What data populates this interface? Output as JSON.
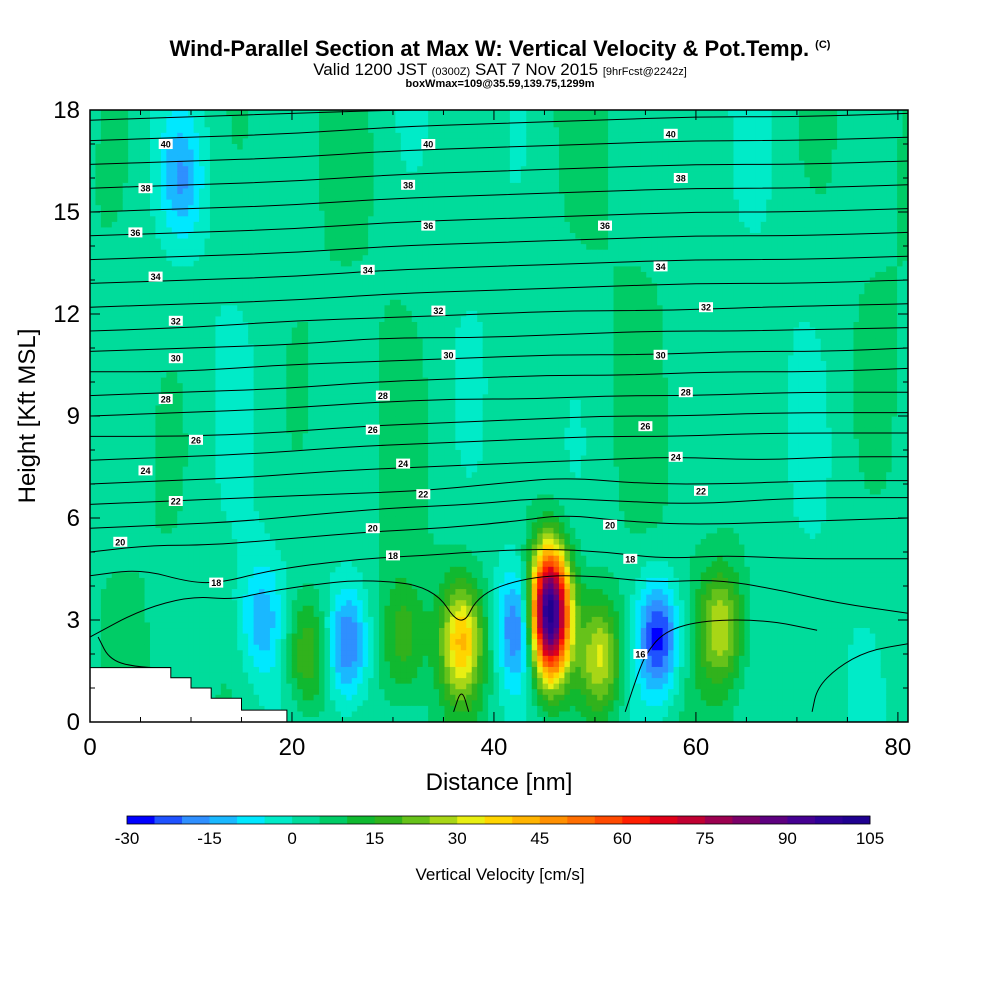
{
  "chart_data": {
    "type": "heatmap",
    "title": "Wind-Parallel Section at Max W: Vertical Velocity & Pot.Temp.",
    "title_mark": "(C)",
    "subtitle_parts": [
      "Valid 1200 JST",
      "(0300Z)",
      "SAT 7 Nov 2015",
      "[9hrFcst@2242z]"
    ],
    "subtitle2": "boxWmax=109@35.59,139.75,1299m",
    "xlabel": "Distance [nm]",
    "ylabel": "Height [Kft MSL]",
    "xlim": [
      0,
      81
    ],
    "ylim": [
      0,
      18
    ],
    "x_ticks": [
      "0",
      "20",
      "40",
      "60",
      "80"
    ],
    "y_ticks": [
      "0",
      "3",
      "6",
      "9",
      "12",
      "15",
      "18"
    ],
    "colorbar": {
      "label": "Vertical Velocity [cm/s]",
      "min": -30,
      "max": 105,
      "step": 5,
      "tick_labels": [
        "-30",
        "-15",
        "0",
        "15",
        "30",
        "45",
        "60",
        "75",
        "90",
        "105"
      ],
      "colors": [
        "#0000ff",
        "#1f52ff",
        "#2f8fff",
        "#1ab8ff",
        "#00e8ff",
        "#00ebc8",
        "#00dc9b",
        "#00cc66",
        "#10b930",
        "#31b21c",
        "#66c21a",
        "#a8d616",
        "#e8ef12",
        "#ffd500",
        "#ffb400",
        "#ff9000",
        "#ff6e00",
        "#ff4a00",
        "#ff1f00",
        "#e00018",
        "#c00032",
        "#9c0050",
        "#7b0068",
        "#5e0080",
        "#450092",
        "#2e0096",
        "#1f0090"
      ]
    },
    "terrain_steps": [
      [
        0,
        1.6
      ],
      [
        8,
        1.6
      ],
      [
        8,
        1.3
      ],
      [
        10,
        1.3
      ],
      [
        10,
        1.0
      ],
      [
        12,
        1.0
      ],
      [
        12,
        0.7
      ],
      [
        15,
        0.7
      ],
      [
        15,
        0.35
      ],
      [
        19.5,
        0.35
      ],
      [
        19.5,
        0
      ]
    ],
    "updraft_columns": [
      {
        "x": 45.5,
        "y": 3.2,
        "w_max": 105
      },
      {
        "x": 36.8,
        "y": 2.4,
        "w_max": 35
      },
      {
        "x": 50.5,
        "y": 1.9,
        "w_max": 28
      },
      {
        "x": 62.5,
        "y": 2.8,
        "w_max": 25
      },
      {
        "x": 21.5,
        "y": 2.0,
        "w_max": 20
      },
      {
        "x": 31.0,
        "y": 2.5,
        "w_max": 15
      }
    ],
    "downdraft_columns": [
      {
        "x": 56.3,
        "y": 2.5,
        "w_min": -30
      },
      {
        "x": 42.5,
        "y": 2.8,
        "w_min": -25
      },
      {
        "x": 25.5,
        "y": 2.3,
        "w_min": -25
      },
      {
        "x": 17.0,
        "y": 3.0,
        "w_min": -15
      },
      {
        "x": 9.0,
        "y": 16.0,
        "w_min": -15
      }
    ],
    "theta_labels": [
      {
        "x": 7.5,
        "y": 17.0,
        "text": "40"
      },
      {
        "x": 33.5,
        "y": 17.0,
        "text": "40"
      },
      {
        "x": 57.5,
        "y": 17.3,
        "text": "40"
      },
      {
        "x": 5.5,
        "y": 15.7,
        "text": "38"
      },
      {
        "x": 31.5,
        "y": 15.8,
        "text": "38"
      },
      {
        "x": 58.5,
        "y": 16.0,
        "text": "38"
      },
      {
        "x": 4.5,
        "y": 14.4,
        "text": "36"
      },
      {
        "x": 33.5,
        "y": 14.6,
        "text": "36"
      },
      {
        "x": 51.0,
        "y": 14.6,
        "text": "36"
      },
      {
        "x": 6.5,
        "y": 13.1,
        "text": "34"
      },
      {
        "x": 27.5,
        "y": 13.3,
        "text": "34"
      },
      {
        "x": 56.5,
        "y": 13.4,
        "text": "34"
      },
      {
        "x": 8.5,
        "y": 11.8,
        "text": "32"
      },
      {
        "x": 34.5,
        "y": 12.1,
        "text": "32"
      },
      {
        "x": 61.0,
        "y": 12.2,
        "text": "32"
      },
      {
        "x": 8.5,
        "y": 10.7,
        "text": "30"
      },
      {
        "x": 35.5,
        "y": 10.8,
        "text": "30"
      },
      {
        "x": 56.5,
        "y": 10.8,
        "text": "30"
      },
      {
        "x": 7.5,
        "y": 9.5,
        "text": "28"
      },
      {
        "x": 29.0,
        "y": 9.6,
        "text": "28"
      },
      {
        "x": 59.0,
        "y": 9.7,
        "text": "28"
      },
      {
        "x": 10.5,
        "y": 8.3,
        "text": "26"
      },
      {
        "x": 28.0,
        "y": 8.6,
        "text": "26"
      },
      {
        "x": 55.0,
        "y": 8.7,
        "text": "26"
      },
      {
        "x": 5.5,
        "y": 7.4,
        "text": "24"
      },
      {
        "x": 31.0,
        "y": 7.6,
        "text": "24"
      },
      {
        "x": 58.0,
        "y": 7.8,
        "text": "24"
      },
      {
        "x": 8.5,
        "y": 6.5,
        "text": "22"
      },
      {
        "x": 33.0,
        "y": 6.7,
        "text": "22"
      },
      {
        "x": 60.5,
        "y": 6.8,
        "text": "22"
      },
      {
        "x": 3.0,
        "y": 5.3,
        "text": "20"
      },
      {
        "x": 28.0,
        "y": 5.7,
        "text": "20"
      },
      {
        "x": 51.5,
        "y": 5.8,
        "text": "20"
      },
      {
        "x": 12.5,
        "y": 4.1,
        "text": "18"
      },
      {
        "x": 30.0,
        "y": 4.9,
        "text": "18"
      },
      {
        "x": 53.5,
        "y": 4.8,
        "text": "18"
      },
      {
        "x": 54.5,
        "y": 2.0,
        "text": "16"
      }
    ],
    "theta_isolines": [
      [
        [
          0,
          2.5
        ],
        [
          5,
          3.3
        ],
        [
          10,
          3.7
        ],
        [
          14,
          3.6
        ],
        [
          17,
          3.8
        ],
        [
          21,
          4.0
        ],
        [
          27,
          4.2
        ],
        [
          34,
          4.0
        ],
        [
          36.8,
          2.7
        ],
        [
          38.5,
          3.8
        ],
        [
          44,
          4.3
        ],
        [
          50,
          4.3
        ],
        [
          56,
          4.1
        ],
        [
          62,
          4.2
        ],
        [
          68,
          3.9
        ],
        [
          74,
          3.5
        ],
        [
          81,
          3.2
        ]
      ],
      [
        [
          0,
          4.3
        ],
        [
          5,
          4.5
        ],
        [
          10,
          4.1
        ],
        [
          13,
          4.1
        ],
        [
          17,
          4.4
        ],
        [
          21,
          4.6
        ],
        [
          27,
          4.8
        ],
        [
          33,
          4.9
        ],
        [
          38,
          5.0
        ],
        [
          45,
          5.1
        ],
        [
          51,
          5.0
        ],
        [
          57,
          4.8
        ],
        [
          63,
          4.9
        ],
        [
          70,
          4.8
        ],
        [
          81,
          4.8
        ]
      ],
      [
        [
          0,
          5.0
        ],
        [
          6,
          5.2
        ],
        [
          12,
          5.2
        ],
        [
          20,
          5.4
        ],
        [
          28,
          5.6
        ],
        [
          35,
          5.7
        ],
        [
          42,
          5.9
        ],
        [
          47,
          6.1
        ],
        [
          53,
          5.9
        ],
        [
          60,
          5.8
        ],
        [
          70,
          5.9
        ],
        [
          81,
          6.0
        ]
      ],
      [
        [
          0,
          5.7
        ],
        [
          8,
          5.8
        ],
        [
          15,
          5.9
        ],
        [
          22,
          6.1
        ],
        [
          30,
          6.3
        ],
        [
          38,
          6.4
        ],
        [
          45,
          6.6
        ],
        [
          52,
          6.5
        ],
        [
          60,
          6.4
        ],
        [
          70,
          6.6
        ],
        [
          81,
          6.6
        ]
      ],
      [
        [
          0,
          6.4
        ],
        [
          8,
          6.5
        ],
        [
          16,
          6.6
        ],
        [
          24,
          6.7
        ],
        [
          33,
          6.8
        ],
        [
          40,
          7.0
        ],
        [
          47,
          7.2
        ],
        [
          55,
          7.0
        ],
        [
          63,
          7.0
        ],
        [
          72,
          7.1
        ],
        [
          81,
          7.1
        ]
      ],
      [
        [
          0,
          7.0
        ],
        [
          8,
          7.1
        ],
        [
          16,
          7.2
        ],
        [
          25,
          7.4
        ],
        [
          33,
          7.5
        ],
        [
          41,
          7.6
        ],
        [
          49,
          7.7
        ],
        [
          58,
          7.8
        ],
        [
          66,
          7.7
        ],
        [
          74,
          7.8
        ],
        [
          81,
          7.8
        ]
      ],
      [
        [
          0,
          7.7
        ],
        [
          9,
          7.8
        ],
        [
          17,
          7.9
        ],
        [
          26,
          8.1
        ],
        [
          34,
          8.2
        ],
        [
          42,
          8.3
        ],
        [
          50,
          8.4
        ],
        [
          58,
          8.4
        ],
        [
          67,
          8.5
        ],
        [
          81,
          8.5
        ]
      ],
      [
        [
          0,
          8.4
        ],
        [
          9,
          8.4
        ],
        [
          18,
          8.5
        ],
        [
          27,
          8.7
        ],
        [
          35,
          8.8
        ],
        [
          43,
          8.9
        ],
        [
          51,
          9.0
        ],
        [
          59,
          9.0
        ],
        [
          68,
          9.1
        ],
        [
          81,
          9.1
        ]
      ],
      [
        [
          0,
          9.0
        ],
        [
          9,
          9.1
        ],
        [
          18,
          9.2
        ],
        [
          28,
          9.4
        ],
        [
          36,
          9.5
        ],
        [
          44,
          9.5
        ],
        [
          52,
          9.6
        ],
        [
          60,
          9.6
        ],
        [
          70,
          9.7
        ],
        [
          81,
          9.7
        ]
      ],
      [
        [
          0,
          9.6
        ],
        [
          9,
          9.7
        ],
        [
          19,
          9.8
        ],
        [
          28,
          10.0
        ],
        [
          37,
          10.1
        ],
        [
          45,
          10.2
        ],
        [
          53,
          10.2
        ],
        [
          62,
          10.3
        ],
        [
          72,
          10.3
        ],
        [
          81,
          10.4
        ]
      ],
      [
        [
          0,
          10.3
        ],
        [
          9,
          10.3
        ],
        [
          19,
          10.5
        ],
        [
          28,
          10.6
        ],
        [
          37,
          10.7
        ],
        [
          46,
          10.8
        ],
        [
          55,
          10.8
        ],
        [
          64,
          10.9
        ],
        [
          73,
          10.9
        ],
        [
          81,
          11.0
        ]
      ],
      [
        [
          0,
          10.9
        ],
        [
          10,
          11.0
        ],
        [
          20,
          11.1
        ],
        [
          29,
          11.3
        ],
        [
          38,
          11.3
        ],
        [
          47,
          11.4
        ],
        [
          56,
          11.5
        ],
        [
          65,
          11.5
        ],
        [
          81,
          11.6
        ]
      ],
      [
        [
          0,
          11.5
        ],
        [
          10,
          11.6
        ],
        [
          20,
          11.8
        ],
        [
          30,
          11.9
        ],
        [
          39,
          12.0
        ],
        [
          48,
          12.1
        ],
        [
          57,
          12.1
        ],
        [
          66,
          12.2
        ],
        [
          81,
          12.3
        ]
      ],
      [
        [
          0,
          12.2
        ],
        [
          10,
          12.3
        ],
        [
          20,
          12.4
        ],
        [
          30,
          12.6
        ],
        [
          40,
          12.7
        ],
        [
          50,
          12.8
        ],
        [
          60,
          12.9
        ],
        [
          70,
          12.9
        ],
        [
          81,
          13.0
        ]
      ],
      [
        [
          0,
          12.9
        ],
        [
          10,
          13.0
        ],
        [
          20,
          13.1
        ],
        [
          30,
          13.3
        ],
        [
          40,
          13.4
        ],
        [
          50,
          13.5
        ],
        [
          60,
          13.6
        ],
        [
          70,
          13.6
        ],
        [
          81,
          13.7
        ]
      ],
      [
        [
          0,
          13.6
        ],
        [
          10,
          13.7
        ],
        [
          20,
          13.8
        ],
        [
          30,
          14.0
        ],
        [
          40,
          14.1
        ],
        [
          50,
          14.2
        ],
        [
          60,
          14.3
        ],
        [
          70,
          14.3
        ],
        [
          81,
          14.4
        ]
      ],
      [
        [
          0,
          14.3
        ],
        [
          10,
          14.4
        ],
        [
          20,
          14.5
        ],
        [
          30,
          14.7
        ],
        [
          40,
          14.8
        ],
        [
          50,
          14.9
        ],
        [
          60,
          15.0
        ],
        [
          70,
          15.0
        ],
        [
          81,
          15.1
        ]
      ],
      [
        [
          0,
          15.0
        ],
        [
          10,
          15.1
        ],
        [
          20,
          15.2
        ],
        [
          30,
          15.4
        ],
        [
          40,
          15.5
        ],
        [
          50,
          15.6
        ],
        [
          60,
          15.7
        ],
        [
          70,
          15.7
        ],
        [
          81,
          15.8
        ]
      ],
      [
        [
          0,
          15.7
        ],
        [
          10,
          15.8
        ],
        [
          20,
          15.9
        ],
        [
          30,
          16.1
        ],
        [
          40,
          16.2
        ],
        [
          50,
          16.3
        ],
        [
          60,
          16.4
        ],
        [
          70,
          16.4
        ],
        [
          81,
          16.5
        ]
      ],
      [
        [
          0,
          16.4
        ],
        [
          10,
          16.5
        ],
        [
          20,
          16.6
        ],
        [
          30,
          16.8
        ],
        [
          40,
          16.9
        ],
        [
          50,
          17.0
        ],
        [
          60,
          17.1
        ],
        [
          70,
          17.1
        ],
        [
          81,
          17.2
        ]
      ],
      [
        [
          0,
          17.1
        ],
        [
          10,
          17.2
        ],
        [
          20,
          17.3
        ],
        [
          30,
          17.5
        ],
        [
          40,
          17.6
        ],
        [
          50,
          17.7
        ],
        [
          60,
          17.8
        ],
        [
          70,
          17.8
        ],
        [
          81,
          17.9
        ]
      ],
      [
        [
          0,
          17.7
        ],
        [
          10,
          17.8
        ],
        [
          20,
          17.9
        ],
        [
          30,
          18.0
        ],
        [
          40,
          18.0
        ],
        [
          50,
          18.0
        ],
        [
          60,
          18.0
        ],
        [
          81,
          18.0
        ]
      ]
    ],
    "theta_low_isolines": [
      [
        [
          36.0,
          0.3
        ],
        [
          36.8,
          1.0
        ],
        [
          37.5,
          0.3
        ]
      ],
      [
        [
          53.0,
          0.3
        ],
        [
          54.0,
          1.2
        ],
        [
          55.0,
          2.0
        ],
        [
          57.0,
          2.7
        ],
        [
          61,
          3.0
        ],
        [
          67,
          3.0
        ],
        [
          72,
          2.7
        ]
      ],
      [
        [
          71.5,
          0.3
        ],
        [
          72,
          1.0
        ],
        [
          74,
          1.6
        ],
        [
          77,
          2.1
        ],
        [
          81,
          2.3
        ]
      ],
      [
        [
          0.8,
          2.5
        ],
        [
          2,
          1.8
        ],
        [
          5,
          1.6
        ],
        [
          8,
          1.6
        ]
      ]
    ]
  }
}
